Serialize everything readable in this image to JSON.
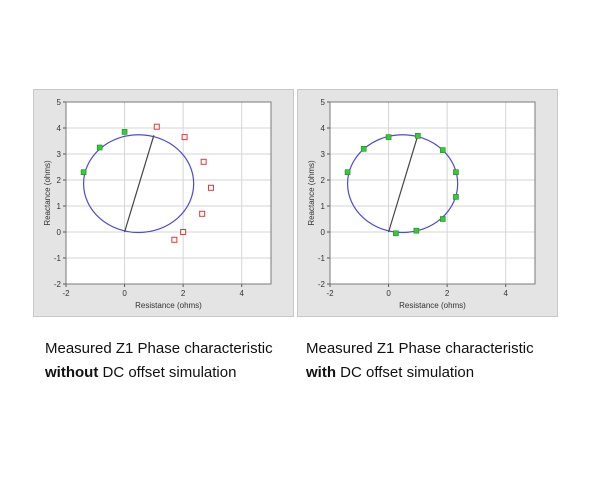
{
  "chart_data": [
    {
      "type": "scatter",
      "xlabel": "Resistance (ohms)",
      "ylabel": "Reactance (ohms)",
      "xlim": [
        -2,
        5
      ],
      "ylim": [
        -2,
        5
      ],
      "x_ticks": [
        "-2",
        "0",
        "2",
        "4"
      ],
      "y_ticks": [
        "-2",
        "-1",
        "0",
        "1",
        "2",
        "3",
        "4",
        "5"
      ],
      "grid": true,
      "circle": {
        "center": [
          0.48,
          1.86
        ],
        "radius": 1.88
      },
      "reach_line": {
        "from": [
          0,
          0
        ],
        "to": [
          1.0,
          3.72
        ]
      },
      "series": [
        {
          "color": "#33cc33",
          "marker": "square",
          "points": [
            [
              -1.4,
              2.3
            ],
            [
              -0.85,
              3.25
            ],
            [
              0.0,
              3.85
            ]
          ]
        },
        {
          "color": "#ee3333",
          "marker": "square-open",
          "points": [
            [
              1.1,
              4.05
            ],
            [
              2.05,
              3.65
            ],
            [
              2.7,
              2.7
            ],
            [
              2.95,
              1.7
            ],
            [
              2.65,
              0.7
            ],
            [
              2.0,
              0.0
            ],
            [
              1.7,
              -0.3
            ]
          ]
        }
      ]
    },
    {
      "type": "scatter",
      "xlabel": "Resistance (ohms)",
      "ylabel": "Reactance (ohms)",
      "xlim": [
        -2,
        5
      ],
      "ylim": [
        -2,
        5
      ],
      "x_ticks": [
        "-2",
        "0",
        "2",
        "4"
      ],
      "y_ticks": [
        "-2",
        "-1",
        "0",
        "1",
        "2",
        "3",
        "4",
        "5"
      ],
      "grid": true,
      "circle": {
        "center": [
          0.48,
          1.86
        ],
        "radius": 1.88
      },
      "reach_line": {
        "from": [
          0,
          0
        ],
        "to": [
          1.0,
          3.72
        ]
      },
      "series": [
        {
          "color": "#33cc33",
          "marker": "square",
          "points": [
            [
              -1.4,
              2.3
            ],
            [
              -0.85,
              3.2
            ],
            [
              0.0,
              3.65
            ],
            [
              1.0,
              3.7
            ],
            [
              1.85,
              3.15
            ],
            [
              2.3,
              2.3
            ],
            [
              2.3,
              1.35
            ],
            [
              1.85,
              0.5
            ],
            [
              0.95,
              0.05
            ],
            [
              0.25,
              -0.05
            ]
          ]
        }
      ]
    }
  ],
  "captions": {
    "left": {
      "line1": "Measured Z1 Phase characteristic",
      "bold": "without",
      "rest": " DC offset simulation"
    },
    "right": {
      "line1": "Measured Z1 Phase characteristic",
      "bold": "with",
      "rest": " DC offset simulation"
    }
  }
}
